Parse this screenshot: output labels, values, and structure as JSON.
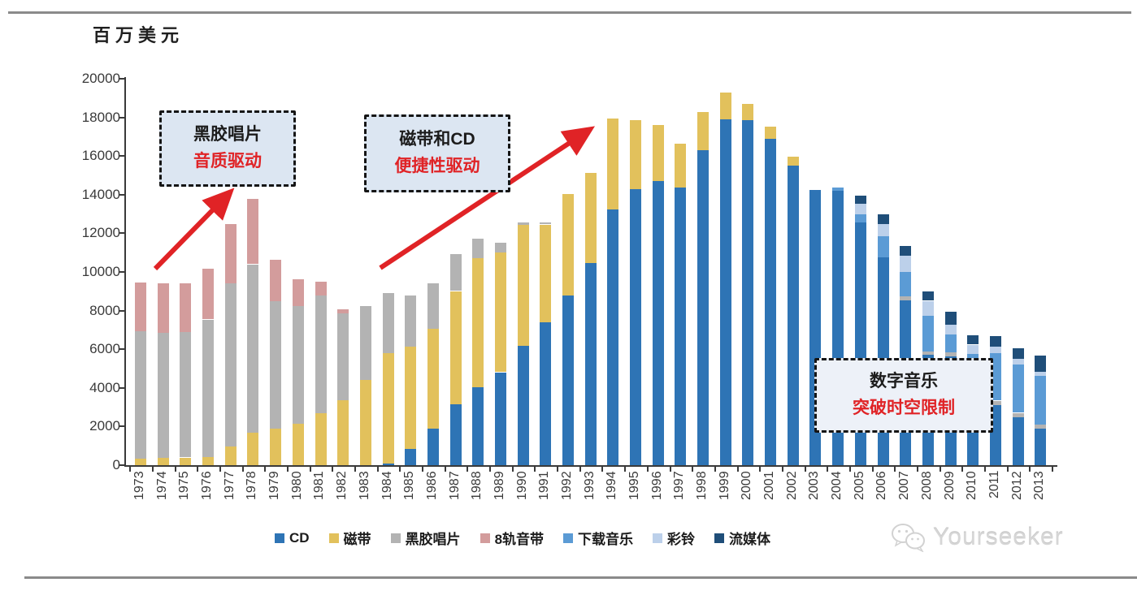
{
  "page": {
    "unit_label": "百万美元",
    "watermark_text": "Yourseeker"
  },
  "annotations": [
    {
      "line1": "黑胶唱片",
      "line2": "音质驱动"
    },
    {
      "line1": "磁带和CD",
      "line2": "便捷性驱动"
    },
    {
      "line1": "数字音乐",
      "line2": "突破时空限制"
    }
  ],
  "colors": {
    "cd": "#2e74b5",
    "cassette": "#e2c15c",
    "vinyl": "#b3b3b3",
    "eight_track": "#d39c9c",
    "download": "#5b9bd5",
    "ringtone": "#bcd0ea",
    "streaming": "#1f4e79",
    "arrow_red": "#e02326",
    "axis_text": "#3a3a3a"
  },
  "chart_data": {
    "type": "bar",
    "stacked": true,
    "title": "",
    "ylabel": "百万美元",
    "xlabel": "",
    "ylim": [
      0,
      20000
    ],
    "ytick_step": 2000,
    "grid": false,
    "legend_position": "bottom",
    "categories": [
      "1973",
      "1974",
      "1975",
      "1976",
      "1977",
      "1978",
      "1979",
      "1980",
      "1981",
      "1982",
      "1983",
      "1984",
      "1985",
      "1986",
      "1987",
      "1988",
      "1989",
      "1990",
      "1991",
      "1992",
      "1993",
      "1994",
      "1995",
      "1996",
      "1997",
      "1998",
      "1999",
      "2000",
      "2001",
      "2002",
      "2003",
      "2004",
      "2005",
      "2006",
      "2007",
      "2008",
      "2009",
      "2010",
      "2011",
      "2012",
      "2013"
    ],
    "series": [
      {
        "name": "CD",
        "color": "#2e74b5",
        "values": [
          0,
          0,
          0,
          0,
          0,
          0,
          0,
          0,
          0,
          0,
          0,
          100,
          840,
          1900,
          3140,
          4020,
          4810,
          6160,
          7380,
          8790,
          10460,
          13250,
          14300,
          14720,
          14370,
          16300,
          17900,
          17860,
          16910,
          15520,
          14260,
          14200,
          12560,
          10740,
          8550,
          5700,
          5650,
          3400,
          3130,
          2500,
          1900
        ]
      },
      {
        "name": "磁带",
        "color": "#e2c15c",
        "values": [
          350,
          400,
          400,
          420,
          950,
          1700,
          1900,
          2150,
          2700,
          3350,
          4400,
          5680,
          5290,
          5150,
          5870,
          6700,
          6210,
          6280,
          5080,
          5260,
          4680,
          4700,
          3560,
          2870,
          2270,
          2000,
          1400,
          840,
          630,
          460,
          0,
          0,
          0,
          0,
          0,
          0,
          0,
          0,
          0,
          0,
          0
        ]
      },
      {
        "name": "黑胶唱片",
        "color": "#b3b3b3",
        "values": [
          6600,
          6450,
          6480,
          7120,
          8450,
          8700,
          6600,
          6100,
          6100,
          4530,
          3850,
          3140,
          2670,
          2350,
          1930,
          1020,
          500,
          120,
          100,
          0,
          0,
          0,
          0,
          0,
          0,
          0,
          0,
          0,
          0,
          0,
          0,
          0,
          0,
          0,
          210,
          180,
          200,
          150,
          210,
          210,
          200
        ]
      },
      {
        "name": "8轨音带",
        "color": "#d39c9c",
        "values": [
          2500,
          2550,
          2520,
          2640,
          3080,
          3400,
          2150,
          1390,
          710,
          210,
          0,
          0,
          0,
          0,
          0,
          0,
          0,
          0,
          0,
          0,
          0,
          0,
          0,
          0,
          0,
          0,
          0,
          0,
          0,
          0,
          0,
          0,
          0,
          0,
          0,
          0,
          0,
          0,
          0,
          0,
          0
        ]
      },
      {
        "name": "下载音乐",
        "color": "#5b9bd5",
        "values": [
          0,
          0,
          0,
          0,
          0,
          0,
          0,
          0,
          0,
          0,
          0,
          0,
          0,
          0,
          0,
          0,
          0,
          0,
          0,
          0,
          0,
          0,
          0,
          0,
          0,
          0,
          0,
          0,
          0,
          0,
          0,
          170,
          420,
          1120,
          1260,
          1870,
          900,
          2200,
          2440,
          2510,
          2520
        ]
      },
      {
        "name": "彩铃",
        "color": "#bcd0ea",
        "values": [
          0,
          0,
          0,
          0,
          0,
          0,
          0,
          0,
          0,
          0,
          0,
          0,
          0,
          0,
          0,
          0,
          0,
          0,
          0,
          0,
          0,
          0,
          0,
          0,
          0,
          0,
          0,
          0,
          0,
          0,
          0,
          0,
          550,
          630,
          840,
          760,
          500,
          490,
          350,
          280,
          200
        ]
      },
      {
        "name": "流媒体",
        "color": "#1f4e79",
        "values": [
          0,
          0,
          0,
          0,
          0,
          0,
          0,
          0,
          0,
          0,
          0,
          0,
          0,
          0,
          0,
          0,
          0,
          0,
          0,
          0,
          0,
          0,
          0,
          0,
          0,
          0,
          0,
          0,
          0,
          0,
          0,
          0,
          420,
          490,
          490,
          490,
          700,
          500,
          560,
          560,
          840
        ]
      }
    ]
  }
}
